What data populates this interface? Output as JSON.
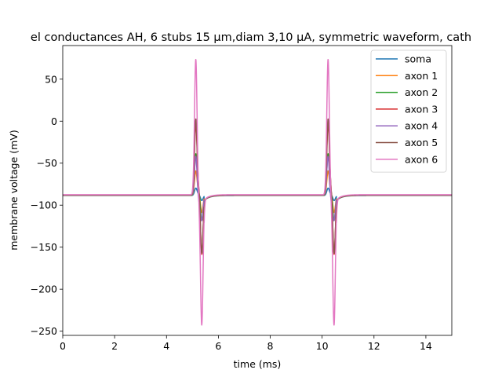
{
  "chart_data": {
    "type": "line",
    "title": "el conductances AH, 6 stubs 15 µm,diam 3,10 µA, symmetric waveform, cath",
    "xlabel": "time (ms)",
    "ylabel": "membrane voltage (mV)",
    "xlim": [
      0,
      15
    ],
    "ylim": [
      -255,
      90
    ],
    "xticks": [
      0,
      2,
      4,
      6,
      8,
      10,
      12,
      14
    ],
    "yticks": [
      -250,
      -200,
      -150,
      -100,
      -50,
      0,
      50
    ],
    "xtick_labels": [
      "0",
      "2",
      "4",
      "6",
      "8",
      "10",
      "12",
      "14"
    ],
    "ytick_labels": [
      "−250",
      "−200",
      "−150",
      "−100",
      "−50",
      "0",
      "50"
    ],
    "grid": false,
    "legend_position": "top-right",
    "pulse_onsets_ms": [
      5.0,
      10.1
    ],
    "series": [
      {
        "name": "soma",
        "color": "#1f77b4",
        "baseline": -88.5,
        "pos_peak": -80,
        "neg_peak": -95,
        "settle": -85
      },
      {
        "name": "axon 1",
        "color": "#ff7f0e",
        "baseline": -88.3,
        "pos_peak": -60,
        "neg_peak": -110,
        "settle": -80
      },
      {
        "name": "axon 2",
        "color": "#2ca02c",
        "baseline": -88.2,
        "pos_peak": -40,
        "neg_peak": -120,
        "settle": -75
      },
      {
        "name": "axon 3",
        "color": "#d62728",
        "baseline": -88.0,
        "pos_peak": -5,
        "neg_peak": -162,
        "settle": -65
      },
      {
        "name": "axon 4",
        "color": "#9467bd",
        "baseline": -88.0,
        "pos_peak": -40,
        "neg_peak": -115,
        "settle": -110
      },
      {
        "name": "axon 5",
        "color": "#8c564b",
        "baseline": -88.0,
        "pos_peak": 1,
        "neg_peak": -160,
        "settle": -70
      },
      {
        "name": "axon 6",
        "color": "#e377c2",
        "baseline": -87.5,
        "pos_peak": 75,
        "neg_peak": -240,
        "settle": -105
      }
    ]
  }
}
